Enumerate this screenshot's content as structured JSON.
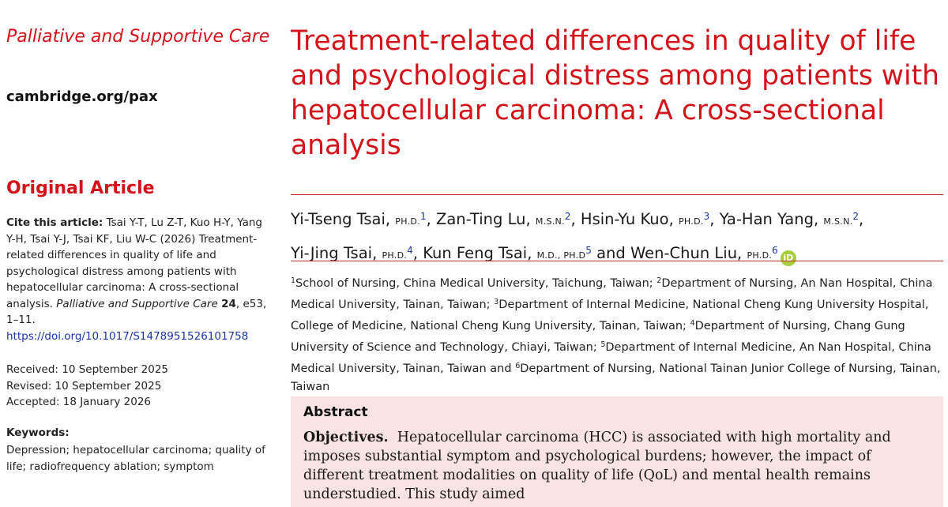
{
  "journal": "Palliative and Supportive Care",
  "site": "cambridge.org/pax",
  "article_type": "Original Article",
  "cite": {
    "label": "Cite this article:",
    "text_1": "Tsai Y-T, Lu Z-T, Kuo H-Y, Yang Y-H, Tsai Y-J, Tsai KF, Liu W-C (2026) Treatment-related differences in quality of life and psychological distress among patients with hepatocellular carcinoma: A cross-sectional analysis.",
    "journal_italic": "Palliative and Supportive Care",
    "volume": "24",
    "pages": ", e53, 1–11.",
    "doi": "https://doi.org/10.1017/S1478951526101758"
  },
  "dates": {
    "received": "Received: 10 September 2025",
    "revised": "Revised: 10 September 2025",
    "accepted": "Accepted: 18 January 2026"
  },
  "keywords": {
    "heading": "Keywords:",
    "text": "Depression; hepatocellular carcinoma; quality of life; radiofrequency ablation; symptom"
  },
  "title": "Treatment-related differences in quality of life and psychological distress among patients with hepatocellular carcinoma: A cross-sectional analysis",
  "authors": [
    {
      "name": "Yi-Tseng Tsai,",
      "degree": "PH.D.",
      "sup": "1",
      "sep": ", "
    },
    {
      "name": "Zan-Ting Lu,",
      "degree": "M.S.N.",
      "sup": "2",
      "sep": ", "
    },
    {
      "name": "Hsin-Yu Kuo,",
      "degree": "PH.D.",
      "sup": "3",
      "sep": ", "
    },
    {
      "name": "Ya-Han Yang,",
      "degree": "M.S.N.",
      "sup": "2",
      "sep": ","
    },
    {
      "name": "Yi-Jing Tsai,",
      "degree": "PH.D.",
      "sup": "4",
      "sep": ", "
    },
    {
      "name": "Kun Feng Tsai,",
      "degree": "M.D., PH.D",
      "sup": "5",
      "sep": " and "
    },
    {
      "name": "Wen-Chun Liu,",
      "degree": "PH.D.",
      "sup": "6",
      "sep": ""
    }
  ],
  "orcid_label": "iD",
  "affiliations": [
    {
      "sup": "1",
      "text": "School of Nursing, China Medical University, Taichung, Taiwan; "
    },
    {
      "sup": "2",
      "text": "Department of Nursing, An Nan Hospital, China Medical University, Tainan, Taiwan; "
    },
    {
      "sup": "3",
      "text": "Department of Internal Medicine, National Cheng Kung University Hospital, College of Medicine, National Cheng Kung University, Tainan, Taiwan; "
    },
    {
      "sup": "4",
      "text": "Department of Nursing, Chang Gung University of Science and Technology, Chiayi, Taiwan; "
    },
    {
      "sup": "5",
      "text": "Department of Internal Medicine, An Nan Hospital, China Medical University, Tainan, Taiwan and "
    },
    {
      "sup": "6",
      "text": "Department of Nursing, National Tainan Junior College of Nursing, Tainan, Taiwan"
    }
  ],
  "abstract": {
    "heading": "Abstract",
    "objectives_label": "Objectives.",
    "objectives_text": "Hepatocellular carcinoma (HCC) is associated with high mortality and imposes substantial symptom and psychological burdens; however, the impact of different treatment modalities on quality of life (QoL) and mental health remains understudied. This study aimed"
  },
  "colors": {
    "accent_red": "#d4121a",
    "link_blue": "#1a33a8",
    "abstract_bg": "#fbe3e3",
    "orcid_green": "#a6ce39"
  }
}
